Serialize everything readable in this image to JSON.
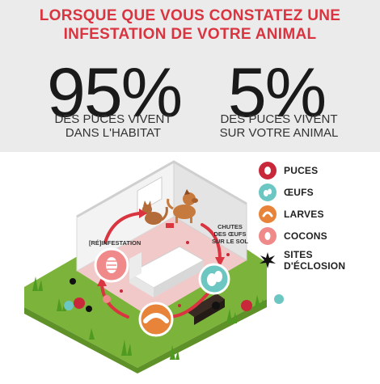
{
  "headline": {
    "line1": "LORSQUE QUE VOUS CONSTATEZ UNE",
    "line2": "INFESTATION DE VOTRE ANIMAL"
  },
  "stat_habitat": {
    "value": "95%",
    "line1": "DES PUCES VIVENT",
    "line2": "DANS L'HABITAT"
  },
  "stat_animal": {
    "value": "5%",
    "line1": "DES PUCES VIVENT",
    "line2": "SUR VOTRE ANIMAL"
  },
  "scene": {
    "reinfestation_label": "[RÉ]INFESTATION",
    "chute_line1": "CHUTES",
    "chute_line2": "DES ŒUFS",
    "chute_line3": "SUR LE SOL"
  },
  "legend": [
    {
      "label": "PUCES",
      "icon": "flea-icon",
      "color": "#c8283a"
    },
    {
      "label": "ŒUFS",
      "icon": "egg-icon",
      "color": "#6cc7c3"
    },
    {
      "label": "LARVES",
      "icon": "larva-icon",
      "color": "#e8833a"
    },
    {
      "label": "COCONS",
      "icon": "cocoon-icon",
      "color": "#f08a8a"
    },
    {
      "label1": "SITES",
      "label2": "D'ÉCLOSION",
      "icon": "hatching-site-icon",
      "color": "#111111"
    }
  ]
}
